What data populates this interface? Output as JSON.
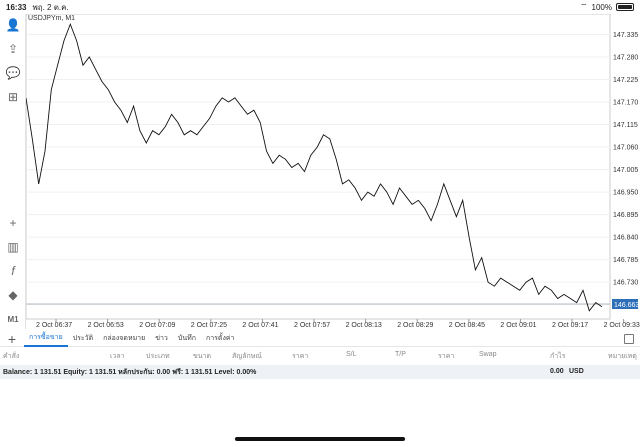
{
  "status": {
    "time": "16:33",
    "date": "พฤ. 2 ต.ค.",
    "battery": "100%"
  },
  "chart": {
    "symbol_title": "USDJPYm, M1",
    "price_labels": [
      "147.335",
      "147.280",
      "147.225",
      "147.170",
      "147.115",
      "147.060",
      "147.005",
      "146.950",
      "146.895",
      "146.840",
      "146.785",
      "146.730",
      "146.675"
    ],
    "current_price": "146.663",
    "time_labels": [
      "2 Oct 06:37",
      "2 Oct 06:53",
      "2 Oct 07:09",
      "2 Oct 07:25",
      "2 Oct 07:41",
      "2 Oct 07:57",
      "2 Oct 08:13",
      "2 Oct 08:29",
      "2 Oct 08:45",
      "2 Oct 09:01",
      "2 Oct 09:17",
      "2 Oct 09:33"
    ],
    "timeframe_label": "M1",
    "line_color": "#111111",
    "price_tag_color": "#2d6fb8"
  },
  "chart_data": {
    "type": "line",
    "title": "USDJPYm, M1",
    "ylim": [
      146.64,
      147.385
    ],
    "x_labels": [
      "2 Oct 06:37",
      "2 Oct 06:53",
      "2 Oct 07:09",
      "2 Oct 07:25",
      "2 Oct 07:41",
      "2 Oct 07:57",
      "2 Oct 08:13",
      "2 Oct 08:29",
      "2 Oct 08:45",
      "2 Oct 09:01",
      "2 Oct 09:17",
      "2 Oct 09:33"
    ],
    "values": [
      147.18,
      147.08,
      146.97,
      147.05,
      147.2,
      147.26,
      147.32,
      147.36,
      147.32,
      147.26,
      147.28,
      147.25,
      147.22,
      147.2,
      147.17,
      147.15,
      147.12,
      147.16,
      147.1,
      147.07,
      147.1,
      147.09,
      147.11,
      147.14,
      147.12,
      147.09,
      147.1,
      147.09,
      147.11,
      147.13,
      147.16,
      147.18,
      147.17,
      147.18,
      147.16,
      147.14,
      147.15,
      147.12,
      147.05,
      147.02,
      147.04,
      147.03,
      147.01,
      147.02,
      147.0,
      147.04,
      147.06,
      147.09,
      147.08,
      147.03,
      146.97,
      146.98,
      146.96,
      146.93,
      146.95,
      146.94,
      146.97,
      146.95,
      146.92,
      146.96,
      146.94,
      146.92,
      146.93,
      146.91,
      146.88,
      146.92,
      146.97,
      146.93,
      146.89,
      146.93,
      146.84,
      146.76,
      146.79,
      146.73,
      146.72,
      146.74,
      146.73,
      146.72,
      146.71,
      146.73,
      146.74,
      146.7,
      146.72,
      146.71,
      146.69,
      146.7,
      146.69,
      146.68,
      146.71,
      146.66,
      146.68,
      146.67
    ]
  },
  "tabs": [
    "การซื้อขาย",
    "ประวัติ",
    "กล่องจดหมาย",
    "ข่าว",
    "บันทึก",
    "การตั้งค่า"
  ],
  "columns": [
    "คำสั่ง",
    "เวลา",
    "ประเภท",
    "ขนาด",
    "สัญลักษณ์",
    "ราคา",
    "S/L",
    "T/P",
    "ราคา",
    "Swap",
    "กำไร",
    "หมายเหตุ"
  ],
  "balance": {
    "text": "Balance: 1 131.51 Equity: 1 131.51 หลักประกัน: 0.00 ฟรี: 1 131.51 Level: 0.00%",
    "profit": "0.00",
    "currency": "USD"
  }
}
